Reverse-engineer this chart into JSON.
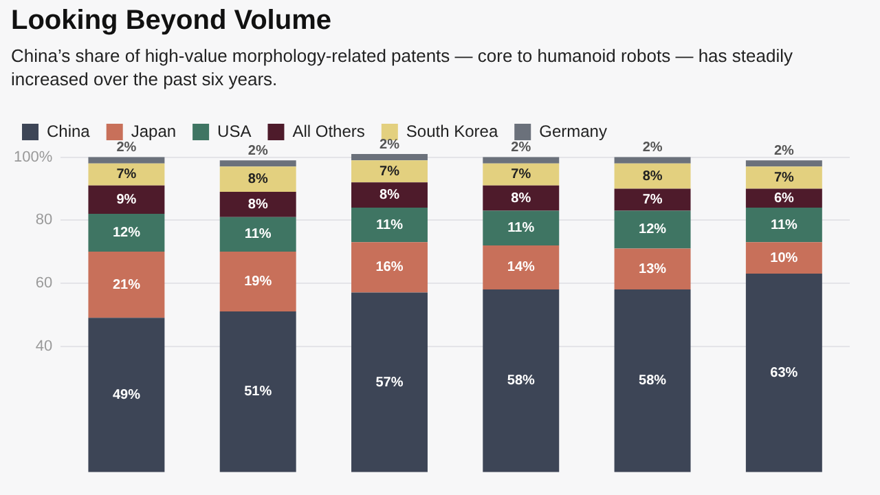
{
  "chart_data": {
    "type": "bar",
    "title": "Looking Beyond Volume",
    "subtitle": "China’s share of high-value morphology-related patents — core to humanoid robots — has steadily increased over the past six years.",
    "categories": [
      null,
      null,
      null,
      null,
      null,
      null
    ],
    "stacked": true,
    "legend": "top left",
    "grid": "y",
    "tick_labels": "y",
    "ylim": [
      0,
      101
    ],
    "yticks": [
      40,
      60,
      80,
      {
        "value": 100,
        "label": "100%"
      }
    ],
    "series": [
      {
        "name": "China",
        "color": "#3d4556",
        "values": [
          49,
          51,
          57,
          58,
          58,
          63
        ],
        "value_labels": [
          "49%",
          "51%",
          "57%",
          "58%",
          "58%",
          "63%"
        ]
      },
      {
        "name": "Japan",
        "color": "#c8705a",
        "values": [
          21,
          19,
          16,
          14,
          13,
          10
        ],
        "value_labels": [
          "21%",
          "19%",
          "16%",
          "14%",
          "13%",
          "10%"
        ]
      },
      {
        "name": "USA",
        "color": "#3f7563",
        "values": [
          12,
          11,
          11,
          11,
          12,
          11
        ],
        "value_labels": [
          "12%",
          "11%",
          "11%",
          "11%",
          "12%",
          "11%"
        ]
      },
      {
        "name": "All Others",
        "color": "#4e1b2b",
        "values": [
          9,
          8,
          8,
          8,
          7,
          6
        ],
        "value_labels": [
          "9%",
          "8%",
          "8%",
          "8%",
          "7%",
          "6%"
        ]
      },
      {
        "name": "South Korea",
        "color": "#e3d07f",
        "values": [
          7,
          8,
          7,
          7,
          8,
          7
        ],
        "value_labels": [
          "7%",
          "8%",
          "7%",
          "7%",
          "8%",
          "7%"
        ]
      },
      {
        "name": "Germany",
        "color": "#6b717b",
        "values": [
          2,
          2,
          2,
          2,
          2,
          2
        ],
        "value_labels": [
          "2%",
          "2%",
          "2%",
          "2%",
          "2%",
          "2%"
        ]
      }
    ]
  }
}
